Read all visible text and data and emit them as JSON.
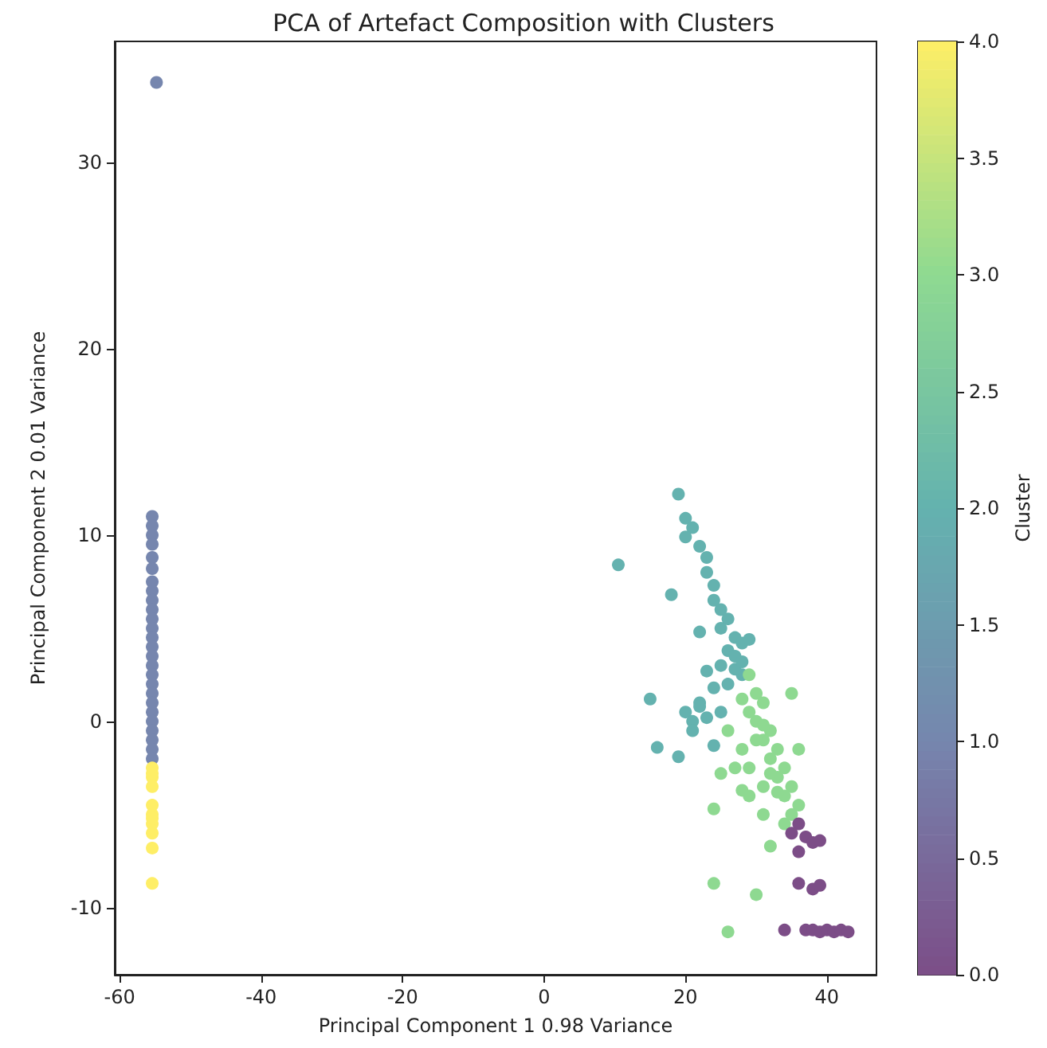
{
  "chart_data": {
    "type": "scatter",
    "title": "PCA of Artefact Composition with Clusters",
    "xlabel": "Principal Component 1 0.98 Variance",
    "ylabel": "Principal Component 2 0.01 Variance",
    "clabel": "Cluster",
    "marker": "circle",
    "x": [
      -55.4,
      -55.4,
      -55.4,
      -55.4,
      -55.4,
      -55.4,
      -55.4,
      -55.4,
      -55.4,
      -55.4,
      -55.4,
      -55.4,
      -55.4,
      -55.4,
      -55.4,
      -55.4,
      -55.4,
      -55.4,
      -55.4,
      -55.4,
      -55.4,
      -55.4,
      -55.4,
      -55.4,
      -55.4,
      -55.4,
      -55.4,
      -55.4,
      -54.8,
      -55.4,
      -55.4,
      -55.4,
      -55.4,
      -55.4,
      -55.4,
      -55.4,
      -55.4,
      -55.4,
      19,
      20,
      21,
      20,
      22,
      23,
      10.5,
      23,
      24,
      18,
      24,
      25,
      26,
      25,
      27,
      26,
      28,
      25,
      27,
      28,
      26,
      24,
      22,
      20,
      15,
      21,
      23,
      25,
      16,
      19,
      21,
      24,
      27,
      28,
      29,
      22,
      23,
      22,
      29,
      30,
      31,
      30,
      32,
      31,
      33,
      32,
      34,
      33,
      35,
      34,
      36,
      35,
      36,
      26,
      28,
      25,
      27,
      24,
      31,
      29,
      34,
      32,
      26,
      24,
      30,
      31,
      29,
      30,
      29,
      32,
      28,
      31,
      33,
      35,
      28,
      36,
      35,
      37,
      38,
      39,
      36,
      36,
      38,
      39,
      34,
      37,
      38,
      39,
      40,
      41,
      42,
      43
    ],
    "values": [
      11,
      10.5,
      10,
      9.5,
      8.8,
      8.2,
      7.5,
      7,
      6.5,
      6,
      5.5,
      5,
      4.5,
      4,
      3.5,
      3,
      2.5,
      2,
      1.5,
      1,
      0.5,
      0,
      -0.5,
      -1,
      -1.5,
      -2,
      -2.5,
      -3,
      34.3,
      -3.5,
      -4.5,
      -5,
      -5.5,
      -6,
      -6.8,
      -8.7,
      -2.8,
      -5.2,
      12.2,
      10.9,
      10.4,
      9.9,
      9.4,
      8.8,
      8.4,
      8,
      7.3,
      6.8,
      6.5,
      6,
      5.5,
      5,
      4.5,
      3.8,
      4.2,
      3,
      3.5,
      2.5,
      2,
      1.8,
      1,
      0.5,
      1.2,
      0,
      0.2,
      0.5,
      -1.4,
      -1.9,
      -0.5,
      -1.3,
      2.8,
      3.2,
      4.4,
      4.8,
      2.7,
      0.8,
      2.5,
      1.5,
      1,
      0,
      -0.5,
      -1,
      -1.5,
      -2,
      -2.5,
      -3,
      -3.5,
      -4,
      -4.5,
      1.5,
      -1.5,
      -0.5,
      -1.5,
      -2.8,
      -2.5,
      -4.7,
      -5,
      -4,
      -5.5,
      -6.7,
      -11.3,
      -8.7,
      -9.3,
      -3.5,
      -2.5,
      -1,
      0.5,
      -2.8,
      1.2,
      -0.2,
      -3.8,
      -5,
      -3.7,
      -5.5,
      -6,
      -6.2,
      -6.5,
      -6.4,
      -7,
      -8.7,
      -9,
      -8.8,
      -11.2,
      -11.2,
      -11.2,
      -11.3,
      -11.2,
      -11.3,
      -11.2,
      -11.3
    ],
    "cvalues": [
      1,
      1,
      1,
      1,
      1,
      1,
      1,
      1,
      1,
      1,
      1,
      1,
      1,
      1,
      1,
      1,
      1,
      1,
      1,
      1,
      1,
      1,
      1,
      1,
      1,
      1,
      4,
      4,
      1,
      4,
      4,
      4,
      4,
      4,
      4,
      4,
      4,
      4,
      2,
      2,
      2,
      2,
      2,
      2,
      2,
      2,
      2,
      2,
      2,
      2,
      2,
      2,
      2,
      2,
      2,
      2,
      2,
      2,
      2,
      2,
      2,
      2,
      2,
      2,
      2,
      2,
      2,
      2,
      2,
      2,
      2,
      2,
      2,
      2,
      2,
      2,
      3,
      3,
      3,
      3,
      3,
      3,
      3,
      3,
      3,
      3,
      3,
      3,
      3,
      3,
      3,
      3,
      3,
      3,
      3,
      3,
      3,
      3,
      3,
      3,
      3,
      3,
      3,
      3,
      3,
      3,
      3,
      3,
      3,
      3,
      3,
      3,
      3,
      0,
      0,
      0,
      0,
      0,
      0,
      0,
      0,
      0,
      0,
      0,
      0,
      0,
      0,
      0,
      0,
      0
    ],
    "clim": [
      0,
      4
    ],
    "cticks": [
      {
        "value": 0,
        "label": "0.0"
      },
      {
        "value": 0.5,
        "label": "0.5"
      },
      {
        "value": 1,
        "label": "1.0"
      },
      {
        "value": 1.5,
        "label": "1.5"
      },
      {
        "value": 2,
        "label": "2.0"
      },
      {
        "value": 2.5,
        "label": "2.5"
      },
      {
        "value": 3,
        "label": "3.0"
      },
      {
        "value": 3.5,
        "label": "3.5"
      },
      {
        "value": 4,
        "label": "4.0"
      }
    ],
    "xlim": [
      -60.7,
      47
    ],
    "xticks": [
      -60,
      -40,
      -20,
      0,
      20,
      40
    ],
    "ylim": [
      -13.6,
      36.5
    ],
    "yticks": [
      -10,
      0,
      10,
      20,
      30
    ]
  }
}
